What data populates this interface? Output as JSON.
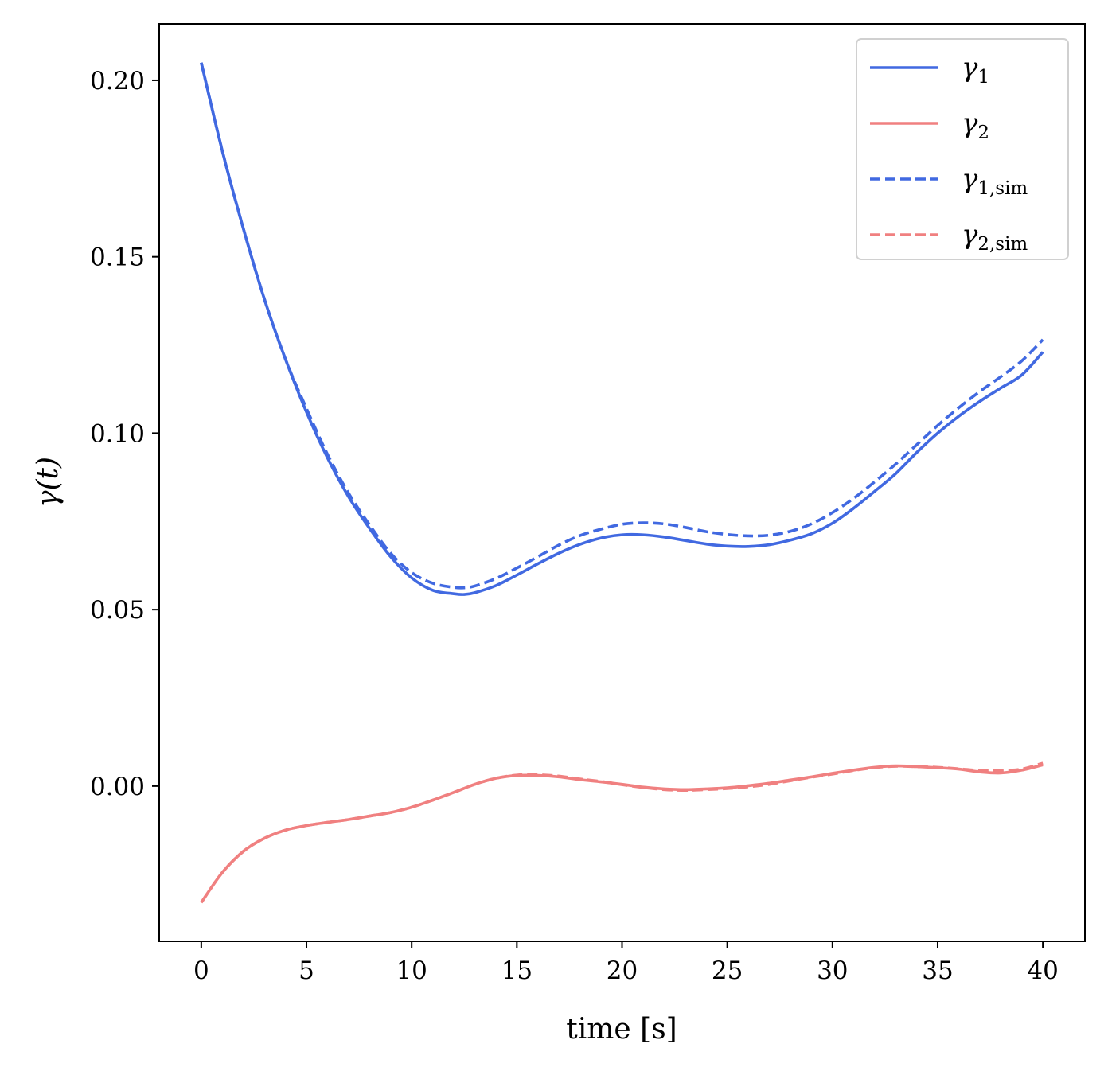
{
  "chart_data": {
    "type": "line",
    "title": "",
    "xlabel": "time [s]",
    "ylabel": "γ(t)",
    "xlim": [
      -2,
      42
    ],
    "ylim": [
      -0.044,
      0.216
    ],
    "xticks": [
      0,
      5,
      10,
      15,
      20,
      25,
      30,
      35,
      40
    ],
    "xtick_labels": [
      "0",
      "5",
      "10",
      "15",
      "20",
      "25",
      "30",
      "35",
      "40"
    ],
    "yticks": [
      0.0,
      0.05,
      0.1,
      0.15,
      0.2
    ],
    "ytick_labels": [
      "0.00",
      "0.05",
      "0.10",
      "0.15",
      "0.20"
    ],
    "grid": false,
    "legend_position": "top-right",
    "series": [
      {
        "name": "γ1",
        "symbol": "γ",
        "sub": "1",
        "color": "#4169e1",
        "dash": "solid",
        "x": [
          0,
          1,
          2,
          3,
          4,
          5,
          6,
          7,
          8,
          9,
          10,
          11,
          12,
          12.5,
          13,
          14,
          15,
          16,
          17,
          18,
          19,
          20,
          21,
          22,
          23,
          24,
          25,
          26,
          27,
          28,
          29,
          30,
          31,
          32,
          33,
          34,
          35,
          36,
          37,
          38,
          39,
          40
        ],
        "values": [
          0.205,
          0.18,
          0.158,
          0.138,
          0.121,
          0.106,
          0.093,
          0.082,
          0.073,
          0.065,
          0.059,
          0.0555,
          0.0545,
          0.0543,
          0.0548,
          0.0568,
          0.0598,
          0.063,
          0.066,
          0.0685,
          0.0703,
          0.0712,
          0.0712,
          0.0706,
          0.0696,
          0.0686,
          0.068,
          0.0679,
          0.0684,
          0.0697,
          0.0715,
          0.0745,
          0.0787,
          0.0835,
          0.0885,
          0.0945,
          0.1,
          0.1048,
          0.109,
          0.1128,
          0.1165,
          0.123
        ]
      },
      {
        "name": "γ2",
        "symbol": "γ",
        "sub": "2",
        "color": "#f08080",
        "dash": "solid",
        "x": [
          0,
          1,
          2,
          3,
          4,
          5,
          6,
          7,
          8,
          9,
          10,
          11,
          12,
          13,
          14,
          15,
          16,
          17,
          18,
          19,
          20,
          21,
          22,
          23,
          24,
          25,
          26,
          27,
          28,
          29,
          30,
          31,
          32,
          33,
          34,
          35,
          36,
          37,
          38,
          39,
          40
        ],
        "values": [
          -0.033,
          -0.0245,
          -0.0185,
          -0.0148,
          -0.0125,
          -0.0112,
          -0.0103,
          -0.0095,
          -0.0085,
          -0.0075,
          -0.006,
          -0.004,
          -0.0018,
          0.0005,
          0.0022,
          0.003,
          0.003,
          0.0026,
          0.0018,
          0.0012,
          0.0005,
          -0.0003,
          -0.0008,
          -0.001,
          -0.0008,
          -0.0005,
          0.0001,
          0.0008,
          0.0017,
          0.0026,
          0.0036,
          0.0045,
          0.0053,
          0.0057,
          0.0055,
          0.0052,
          0.0048,
          0.004,
          0.0037,
          0.0045,
          0.006
        ]
      },
      {
        "name": "γ1,sim",
        "symbol": "γ",
        "sub": "1,sim",
        "color": "#4169e1",
        "dash": "dashed",
        "x": [
          0,
          1,
          2,
          3,
          4,
          5,
          6,
          7,
          8,
          9,
          10,
          11,
          12,
          12.5,
          13,
          14,
          15,
          16,
          17,
          18,
          19,
          20,
          21,
          22,
          23,
          24,
          25,
          26,
          27,
          28,
          29,
          30,
          31,
          32,
          33,
          34,
          35,
          36,
          37,
          38,
          39,
          40
        ],
        "values": [
          0.205,
          0.18,
          0.158,
          0.138,
          0.121,
          0.107,
          0.094,
          0.083,
          0.074,
          0.066,
          0.0605,
          0.0575,
          0.0563,
          0.0562,
          0.0567,
          0.0588,
          0.0618,
          0.065,
          0.0683,
          0.071,
          0.0728,
          0.0742,
          0.0746,
          0.0743,
          0.0733,
          0.0721,
          0.0713,
          0.0709,
          0.0711,
          0.0722,
          0.0743,
          0.0775,
          0.0815,
          0.0862,
          0.0912,
          0.0967,
          0.1022,
          0.1072,
          0.1118,
          0.116,
          0.1205,
          0.1265
        ]
      },
      {
        "name": "γ2,sim",
        "symbol": "γ",
        "sub": "2,sim",
        "color": "#f08080",
        "dash": "dashed",
        "x": [
          0,
          1,
          2,
          3,
          4,
          5,
          6,
          7,
          8,
          9,
          10,
          11,
          12,
          13,
          14,
          15,
          16,
          17,
          18,
          19,
          20,
          21,
          22,
          23,
          24,
          25,
          26,
          27,
          28,
          29,
          30,
          31,
          32,
          33,
          34,
          35,
          36,
          37,
          38,
          39,
          40
        ],
        "values": [
          -0.033,
          -0.0245,
          -0.0185,
          -0.0148,
          -0.0125,
          -0.0112,
          -0.0103,
          -0.0095,
          -0.0085,
          -0.0075,
          -0.006,
          -0.004,
          -0.0018,
          0.0005,
          0.0022,
          0.0031,
          0.0032,
          0.0028,
          0.002,
          0.0013,
          0.0004,
          -0.0004,
          -0.001,
          -0.0012,
          -0.001,
          -0.0007,
          -0.0002,
          0.0005,
          0.0015,
          0.0025,
          0.0034,
          0.0044,
          0.0052,
          0.0056,
          0.0055,
          0.0053,
          0.0049,
          0.0044,
          0.0044,
          0.0048,
          0.0065
        ]
      }
    ]
  }
}
